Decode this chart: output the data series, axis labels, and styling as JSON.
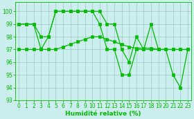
{
  "x": [
    0,
    1,
    2,
    3,
    4,
    5,
    6,
    7,
    8,
    9,
    10,
    11,
    12,
    13,
    14,
    15,
    16,
    17,
    18,
    19,
    20,
    21,
    22,
    23
  ],
  "line1": [
    99,
    99,
    99,
    98,
    98,
    100,
    100,
    100,
    100,
    100,
    100,
    100,
    99,
    99,
    97,
    96,
    98,
    97,
    99,
    97,
    97,
    97,
    97,
    97
  ],
  "line2": [
    97,
    97,
    97,
    97,
    97,
    97,
    97.2,
    97.4,
    97.6,
    97.8,
    98,
    98,
    97.8,
    97.6,
    97.4,
    97.2,
    97.1,
    97.1,
    97.1,
    97,
    97,
    97,
    97,
    97
  ],
  "line3": [
    99,
    99,
    99,
    97,
    98,
    100,
    100,
    100,
    100,
    100,
    100,
    99,
    97,
    97,
    95,
    95,
    97,
    97,
    97,
    97,
    97,
    95,
    94,
    97
  ],
  "xlabel": "Humidité relative (%)",
  "ylim": [
    93,
    100.7
  ],
  "yticks": [
    93,
    94,
    95,
    96,
    97,
    98,
    99,
    100
  ],
  "xticks": [
    0,
    1,
    2,
    3,
    4,
    5,
    6,
    7,
    8,
    9,
    10,
    11,
    12,
    13,
    14,
    15,
    16,
    17,
    18,
    19,
    20,
    21,
    22,
    23
  ],
  "line_color": "#00bb00",
  "bg_color": "#cceeee",
  "grid_color": "#99ccbb"
}
